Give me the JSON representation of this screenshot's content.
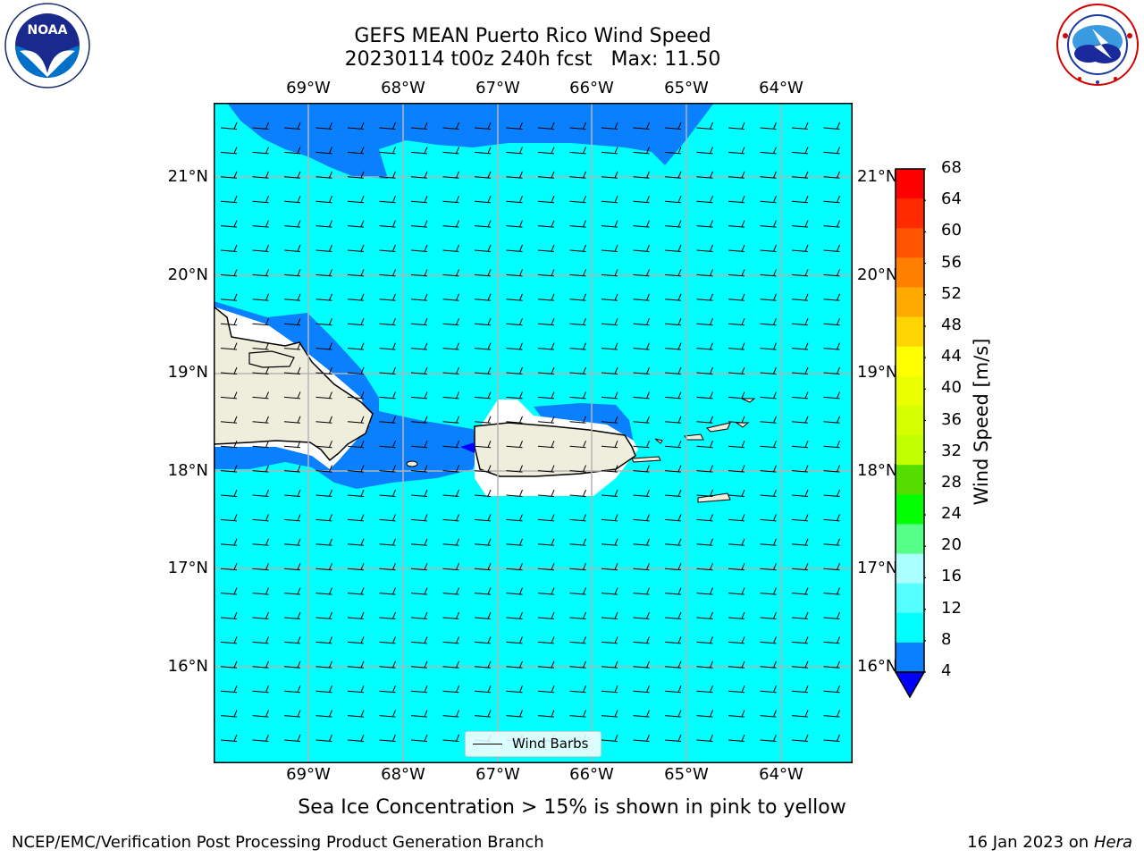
{
  "title": {
    "line1": "GEFS MEAN Puerto Rico Wind Speed",
    "line2": "20230114 t00z 240h fcst   Max: 11.50"
  },
  "logos": {
    "left": {
      "icon": "noaa-logo",
      "text": "NOAA",
      "ring_text": "NATIONAL OCEANIC AND ATMOSPHERIC ADMINISTRATION · U.S. DEPARTMENT OF COMMERCE"
    },
    "right": {
      "icon": "nws-logo",
      "ring_text": "NATIONAL WEATHER SERVICE"
    }
  },
  "map": {
    "lon_labels": [
      "69°W",
      "68°W",
      "67°W",
      "66°W",
      "65°W",
      "64°W"
    ],
    "lat_labels": [
      "21°N",
      "20°N",
      "19°N",
      "18°N",
      "17°N",
      "16°N"
    ],
    "legend_label": "Wind Barbs",
    "colors": {
      "ocean_fast": "#00ffff",
      "ocean_slow": "#0a80ff",
      "land": "#efeddc",
      "masked": "#ffffff",
      "grid": "#b4b4b4"
    }
  },
  "colorbar": {
    "label": "Wind Speed [m/s]",
    "ticks": [
      "68",
      "64",
      "60",
      "56",
      "52",
      "48",
      "44",
      "40",
      "36",
      "32",
      "28",
      "24",
      "20",
      "16",
      "12",
      "8",
      "4"
    ],
    "colors_top_to_bottom": [
      "#ff0000",
      "#ff2a00",
      "#ff5500",
      "#ff8000",
      "#ffaa00",
      "#ffd500",
      "#ffff00",
      "#eaff00",
      "#d5ff00",
      "#bfff00",
      "#55dd00",
      "#00ff00",
      "#55ff88",
      "#aaffff",
      "#55ffff",
      "#00ffff",
      "#0a80ff"
    ],
    "under_color": "#0000ff"
  },
  "caption": "Sea Ice Concentration > 15% is shown in pink to yellow",
  "footer": {
    "left": "NCEP/EMC/Verification Post Processing Product Generation Branch",
    "date": "16 Jan 2023 on ",
    "host": "Hera"
  }
}
